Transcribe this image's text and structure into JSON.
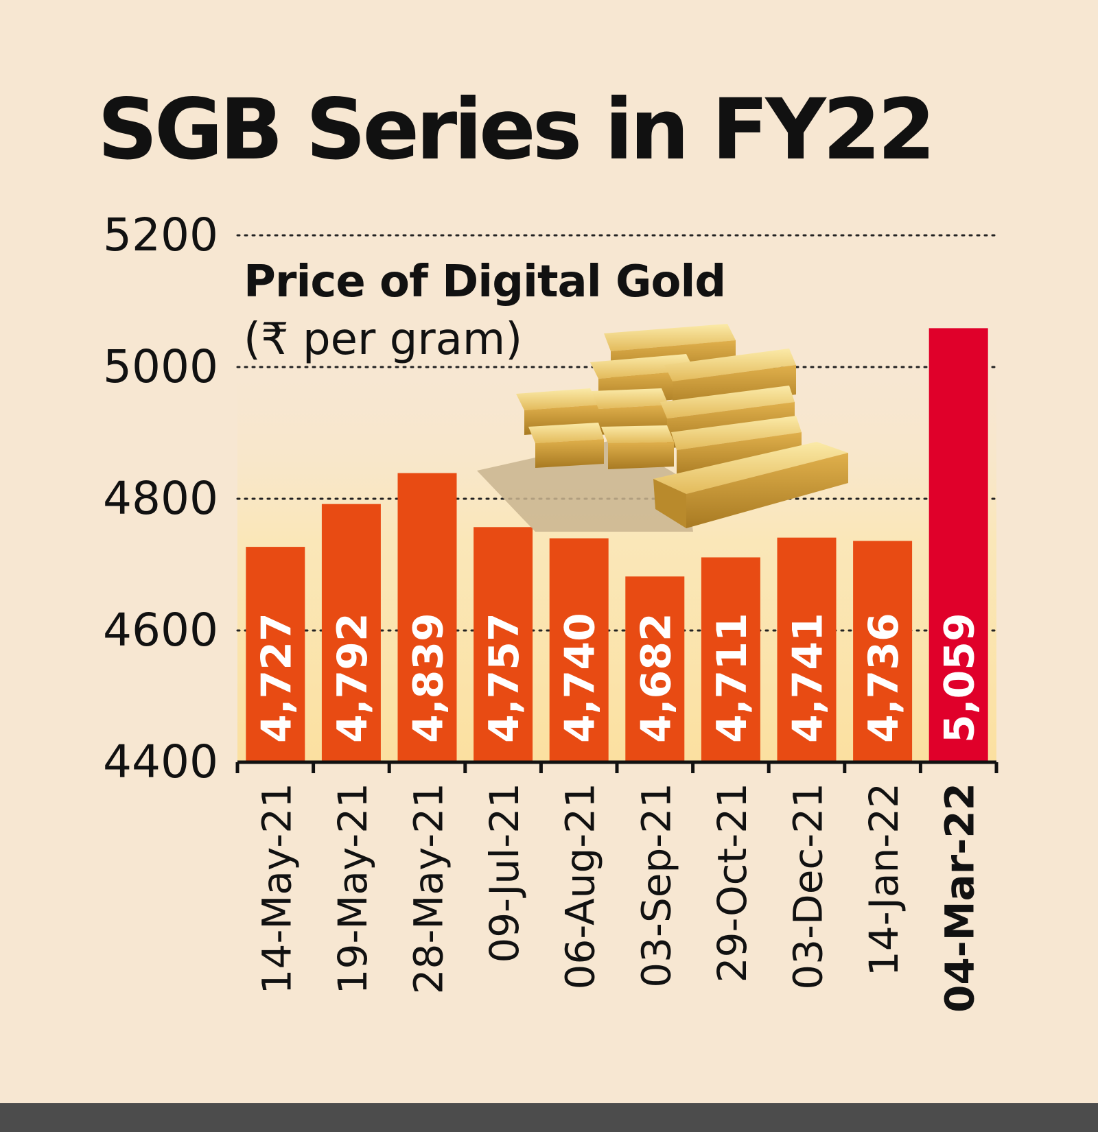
{
  "chart_data": {
    "type": "bar",
    "title": "SGB Series in FY22",
    "subtitle": "Price of Digital Gold",
    "unit_label": "(₹ per gram)",
    "categories": [
      "14-May-21",
      "19-May-21",
      "28-May-21",
      "09-Jul-21",
      "06-Aug-21",
      "03-Sep-21",
      "29-Oct-21",
      "03-Dec-21",
      "14-Jan-22",
      "04-Mar-22"
    ],
    "values": [
      4727,
      4792,
      4839,
      4757,
      4740,
      4682,
      4711,
      4741,
      4736,
      5059
    ],
    "value_labels": [
      "4,727",
      "4,792",
      "4,839",
      "4,757",
      "4,740",
      "4,682",
      "4,711",
      "4,741",
      "4,736",
      "5,059"
    ],
    "highlight_index": 9,
    "ylim": [
      4400,
      5200
    ],
    "yticks": [
      4400,
      4600,
      4800,
      5000,
      5200
    ],
    "ytick_labels": [
      "4400",
      "4600",
      "4800",
      "5000",
      "5200"
    ],
    "grid": "dotted horizontal",
    "xlabel": "",
    "ylabel": "",
    "decoration_icon": "gold-bars-icon",
    "colors": {
      "background": "#f7e7d2",
      "bar": "#e84b13",
      "highlight_bar": "#e0002a",
      "text": "#111111",
      "value_label": "#ffffff"
    }
  }
}
